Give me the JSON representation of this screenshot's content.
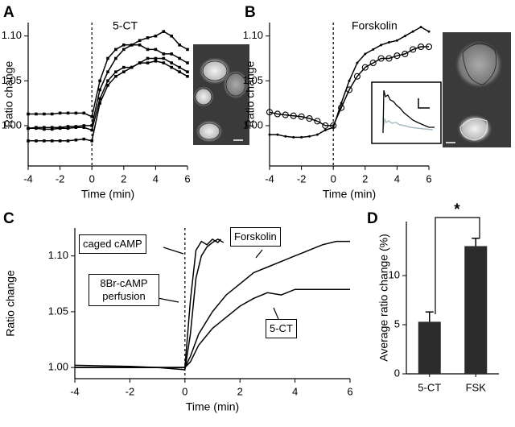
{
  "chart_data": [
    {
      "type": "line",
      "panel_label": "A",
      "xlabel": "Time (min)",
      "ylabel": "Ratio change",
      "annotations": [
        "5-CT"
      ],
      "x": [
        -4,
        -3.5,
        -3,
        -2.5,
        -2,
        -1.5,
        -1,
        -0.5,
        0,
        0.5,
        1,
        1.5,
        2,
        2.5,
        3,
        3.5,
        4,
        4.5,
        5,
        5.5,
        6
      ],
      "series": [
        {
          "color": "#000000",
          "marker": "square",
          "values": [
            1.013,
            1.013,
            1.013,
            1.013,
            1.014,
            1.014,
            1.014,
            1.014,
            1.01,
            1.05,
            1.075,
            1.085,
            1.09,
            1.09,
            1.095,
            1.098,
            1.1,
            1.105,
            1.1,
            1.09,
            1.085
          ]
        },
        {
          "color": "#000000",
          "marker": "square",
          "values": [
            0.997,
            0.998,
            0.998,
            0.998,
            0.998,
            0.999,
            0.999,
            1.0,
            1.0,
            1.04,
            1.06,
            1.075,
            1.085,
            1.09,
            1.09,
            1.085,
            1.085,
            1.08,
            1.08,
            1.075,
            1.07
          ]
        },
        {
          "color": "#000000",
          "marker": "square",
          "values": [
            0.997,
            0.997,
            0.996,
            0.996,
            0.997,
            0.997,
            0.998,
            0.998,
            0.995,
            1.03,
            1.05,
            1.06,
            1.065,
            1.065,
            1.07,
            1.075,
            1.075,
            1.075,
            1.07,
            1.065,
            1.06
          ]
        },
        {
          "color": "#000000",
          "marker": "square",
          "values": [
            0.983,
            0.983,
            0.983,
            0.983,
            0.983,
            0.983,
            0.984,
            0.985,
            0.983,
            1.025,
            1.045,
            1.055,
            1.06,
            1.065,
            1.07,
            1.07,
            1.072,
            1.07,
            1.065,
            1.06,
            1.055
          ]
        }
      ],
      "vline": 0,
      "xlim": [
        -4,
        6
      ],
      "xticks": [
        -4,
        -2,
        0,
        2,
        4,
        6
      ],
      "ylim": [
        0.955,
        1.115
      ],
      "yticks": [
        {
          "value": 1,
          "label": "1.00"
        },
        1.05,
        {
          "value": 1.1,
          "label": "1.10"
        }
      ]
    },
    {
      "type": "line",
      "panel_label": "B",
      "xlabel": "Time (min)",
      "ylabel": "Ratio change",
      "annotations": [
        "Forskolin"
      ],
      "x": [
        -4,
        -3.5,
        -3,
        -2.5,
        -2,
        -1.5,
        -1,
        -0.5,
        0,
        0.5,
        1,
        1.5,
        2,
        2.5,
        3,
        3.5,
        4,
        4.5,
        5,
        5.5,
        6
      ],
      "series": [
        {
          "color": "#000000",
          "marker": "circle",
          "values": [
            1.015,
            1.013,
            1.012,
            1.011,
            1.01,
            1.008,
            1.005,
            1.0,
            1.0,
            1.02,
            1.04,
            1.055,
            1.065,
            1.07,
            1.075,
            1.075,
            1.078,
            1.08,
            1.085,
            1.088,
            1.088
          ]
        },
        {
          "color": "#000000",
          "marker": "dot",
          "values": [
            0.99,
            0.99,
            0.988,
            0.987,
            0.987,
            0.988,
            0.99,
            0.995,
            0.998,
            1.025,
            1.05,
            1.07,
            1.08,
            1.085,
            1.09,
            1.093,
            1.095,
            1.1,
            1.105,
            1.11,
            1.105
          ]
        }
      ],
      "vline": 0,
      "xlim": [
        -4,
        6
      ],
      "xticks": [
        -4,
        -2,
        0,
        2,
        4,
        6
      ],
      "ylim": [
        0.955,
        1.115
      ],
      "yticks": [
        {
          "value": 1,
          "label": "1.00"
        },
        1.05,
        {
          "value": 1.1,
          "label": "1.10"
        }
      ]
    },
    {
      "type": "line",
      "panel_label": "C",
      "xlabel": "Time (min)",
      "ylabel": "Ratio change",
      "annotations": [
        "caged cAMP",
        "8Br-cAMP perfusion",
        "Forskolin",
        "5-CT"
      ],
      "series": [
        {
          "color": "#000000",
          "marker": "none",
          "x": [
            -4,
            -2,
            -1,
            0,
            0.2,
            0.4,
            0.6,
            0.8,
            1.0,
            1.2,
            1.3
          ],
          "values": [
            1.002,
            1.001,
            1.0,
            1.0,
            1.06,
            1.105,
            1.113,
            1.11,
            1.115,
            1.112,
            1.115
          ]
        },
        {
          "color": "#000000",
          "marker": "none",
          "x": [
            -4,
            -2,
            -1,
            0,
            0.2,
            0.4,
            0.6,
            0.8,
            1.0,
            1.2,
            1.4
          ],
          "values": [
            1.0,
            1.0,
            1.0,
            0.998,
            1.03,
            1.08,
            1.1,
            1.108,
            1.112,
            1.115,
            1.112
          ]
        },
        {
          "color": "#000000",
          "marker": "none",
          "x": [
            -4,
            -2,
            0,
            0.2,
            0.5,
            1,
            1.5,
            2,
            2.5,
            3,
            3.5,
            4,
            4.5,
            5,
            5.5,
            6
          ],
          "values": [
            1.0,
            1.0,
            1.0,
            1.01,
            1.03,
            1.05,
            1.065,
            1.075,
            1.085,
            1.09,
            1.095,
            1.1,
            1.105,
            1.11,
            1.113,
            1.113
          ]
        },
        {
          "color": "#000000",
          "marker": "none",
          "x": [
            -4,
            -2,
            0,
            0.2,
            0.5,
            1,
            1.5,
            2,
            2.5,
            3,
            3.5,
            4,
            4.5,
            5,
            5.5,
            6
          ],
          "values": [
            1.0,
            1.0,
            1.0,
            1.005,
            1.02,
            1.035,
            1.045,
            1.055,
            1.062,
            1.067,
            1.065,
            1.07,
            1.07,
            1.07,
            1.07,
            1.07
          ]
        }
      ],
      "vline": 0,
      "xlim": [
        -4,
        6
      ],
      "xticks": [
        -4,
        -2,
        0,
        2,
        4,
        6
      ],
      "ylim": [
        0.99,
        1.125
      ],
      "yticks": [
        {
          "value": 1,
          "label": "1.00"
        },
        1.05,
        {
          "value": 1.1,
          "label": "1.10"
        }
      ]
    },
    {
      "type": "bar",
      "panel_label": "D",
      "ylabel": "Average ratio change (%)",
      "annotations": [
        "*"
      ],
      "categories": [
        "5-CT",
        "FSK"
      ],
      "values": [
        5.3,
        13.0
      ],
      "errors": [
        1.0,
        0.8
      ],
      "color": "#2b2b2b",
      "ylim": [
        0,
        15.5
      ],
      "yticks": [
        0,
        5,
        10
      ]
    }
  ]
}
